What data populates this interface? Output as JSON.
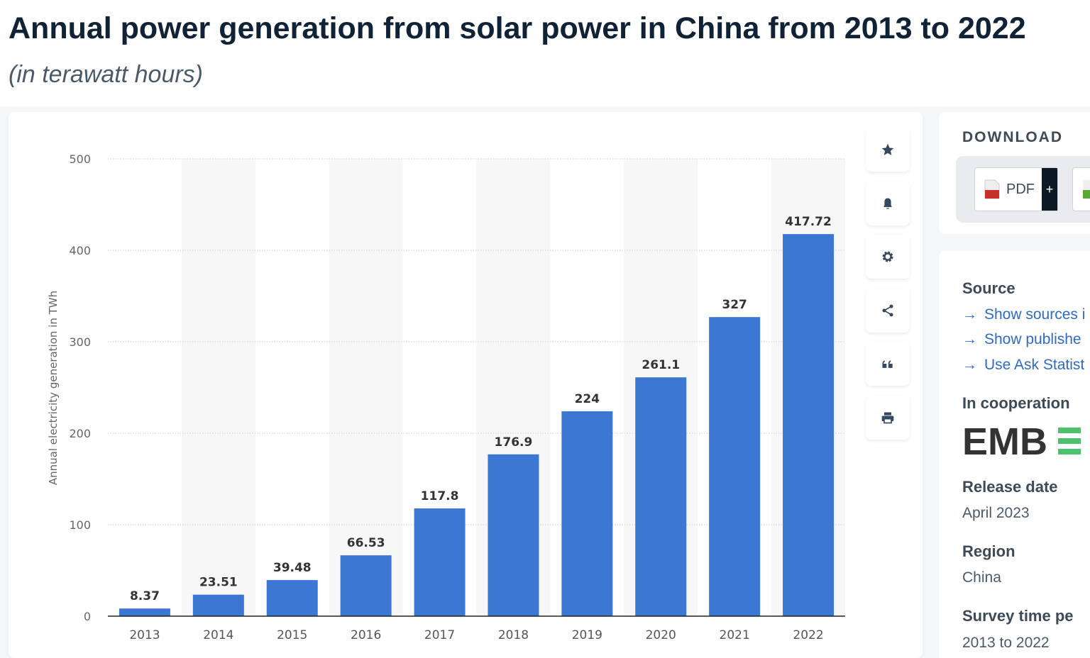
{
  "header": {
    "title": "Annual power generation from solar power in China from 2013 to 2022",
    "subtitle": "(in terawatt hours)"
  },
  "chart_data": {
    "type": "bar",
    "categories": [
      "2013",
      "2014",
      "2015",
      "2016",
      "2017",
      "2018",
      "2019",
      "2020",
      "2021",
      "2022"
    ],
    "values": [
      8.37,
      23.51,
      39.48,
      66.53,
      117.8,
      176.9,
      224,
      261.1,
      327,
      417.72
    ],
    "value_labels": [
      "8.37",
      "23.51",
      "39.48",
      "66.53",
      "117.8",
      "176.9",
      "224",
      "261.1",
      "327",
      "417.72"
    ],
    "ylabel": "Annual electricity generation in TWh",
    "xlabel": "",
    "ylim": [
      0,
      500
    ],
    "yticks": [
      0,
      100,
      200,
      300,
      400,
      500
    ],
    "grid": true,
    "bar_color": "#3d77d4"
  },
  "toolbar": {
    "icons": [
      "star-icon",
      "bell-icon",
      "gear-icon",
      "share-icon",
      "quote-icon",
      "print-icon"
    ]
  },
  "download": {
    "title": "DOWNLOAD",
    "pdf_label": "PDF",
    "plus": "+"
  },
  "info": {
    "source_heading": "Source",
    "links": [
      "Show sources i",
      "Show publishe",
      "Use Ask Statist"
    ],
    "cooperation_heading": "In cooperation",
    "cooperation_logo": "EMBER",
    "release_heading": "Release date",
    "release_value": "April 2023",
    "region_heading": "Region",
    "region_value": "China",
    "survey_heading": "Survey time pe",
    "survey_value": "2013 to 2022"
  }
}
